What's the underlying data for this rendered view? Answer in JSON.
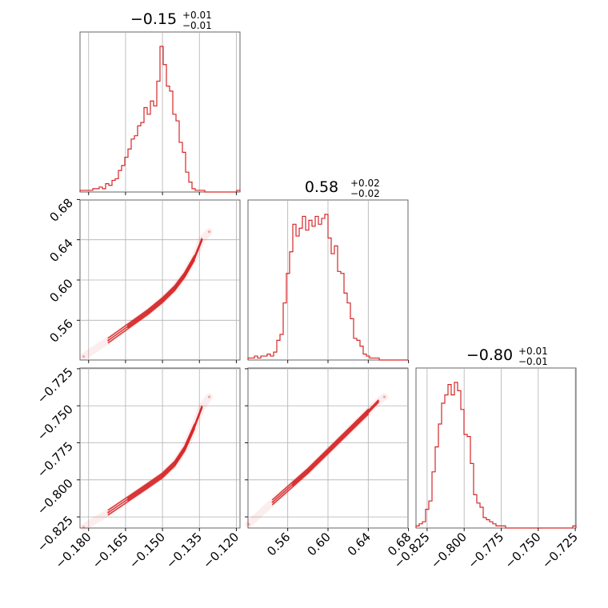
{
  "chart_data": {
    "type": "corner",
    "color": "#d62728",
    "parameters": [
      {
        "title": {
          "median": "−0.15",
          "upper": "+0.01",
          "lower": "−0.01"
        },
        "range": [
          -0.1835,
          -0.1185
        ],
        "ticks": [
          -0.18,
          -0.165,
          -0.15,
          -0.135,
          -0.12
        ],
        "tick_labels": [
          "−0.180",
          "−0.165",
          "−0.150",
          "−0.135",
          "−0.120"
        ]
      },
      {
        "title": {
          "median": "0.58",
          "upper": "+0.02",
          "lower": "−0.02"
        },
        "range": [
          0.5205,
          0.6795
        ],
        "ticks": [
          0.56,
          0.6,
          0.64,
          0.68
        ],
        "tick_labels": [
          "0.56",
          "0.60",
          "0.64",
          "0.68"
        ],
        "y_ticks": [
          0.56,
          0.6,
          0.64,
          0.68
        ],
        "y_tick_labels": [
          "0.56",
          "0.60",
          "0.64",
          "0.68"
        ]
      },
      {
        "title": {
          "median": "−0.80",
          "upper": "+0.01",
          "lower": "−0.01"
        },
        "range": [
          -0.8325,
          -0.7245
        ],
        "ticks": [
          -0.825,
          -0.8,
          -0.775,
          -0.75,
          -0.725
        ],
        "tick_labels": [
          "−0.825",
          "−0.800",
          "−0.775",
          "−0.750",
          "−0.725"
        ]
      }
    ],
    "histograms": [
      {
        "param": 0,
        "bin_edges_range": [
          -0.1835,
          -0.1185
        ],
        "counts": [
          1,
          1,
          1,
          1,
          2,
          2,
          3,
          2,
          5,
          4,
          7,
          8,
          13,
          16,
          21,
          26,
          32,
          34,
          40,
          42,
          51,
          47,
          55,
          52,
          67,
          88,
          77,
          64,
          61,
          47,
          43,
          30,
          24,
          12,
          6,
          2,
          1,
          1,
          1,
          0,
          0,
          0,
          0,
          0,
          0,
          0,
          0,
          0,
          0,
          1
        ]
      },
      {
        "param": 1,
        "bin_edges_range": [
          0.5205,
          0.6795
        ],
        "counts": [
          1,
          1,
          2,
          1,
          2,
          2,
          3,
          2,
          4,
          10,
          13,
          29,
          44,
          55,
          69,
          63,
          67,
          73,
          66,
          71,
          68,
          73,
          69,
          72,
          74,
          62,
          54,
          58,
          45,
          44,
          34,
          29,
          21,
          11,
          10,
          7,
          3,
          2,
          1,
          1,
          1,
          0,
          0,
          0,
          0,
          0,
          0,
          0,
          0,
          0
        ]
      },
      {
        "param": 2,
        "bin_edges_range": [
          -0.8325,
          -0.7245
        ],
        "counts": [
          1,
          2,
          3,
          9,
          13,
          27,
          39,
          50,
          60,
          64,
          69,
          64,
          70,
          66,
          57,
          45,
          44,
          31,
          16,
          12,
          10,
          5,
          4,
          3,
          2,
          1,
          1,
          1,
          0,
          0,
          0,
          0,
          0,
          0,
          0,
          0,
          0,
          0,
          0,
          0,
          0,
          0,
          0,
          0,
          0,
          0,
          0,
          0,
          0,
          1
        ]
      }
    ],
    "pairs": [
      {
        "x_param": 0,
        "y_param": 1,
        "trend": [
          [
            -0.182,
            0.524
          ],
          [
            -0.172,
            0.54
          ],
          [
            -0.164,
            0.554
          ],
          [
            -0.156,
            0.568
          ],
          [
            -0.15,
            0.58
          ],
          [
            -0.145,
            0.592
          ],
          [
            -0.141,
            0.605
          ],
          [
            -0.137,
            0.622
          ],
          [
            -0.134,
            0.64
          ],
          [
            -0.131,
            0.648
          ]
        ]
      },
      {
        "x_param": 0,
        "y_param": 2,
        "trend": [
          [
            -0.182,
            -0.832
          ],
          [
            -0.172,
            -0.822
          ],
          [
            -0.164,
            -0.813
          ],
          [
            -0.156,
            -0.804
          ],
          [
            -0.15,
            -0.797
          ],
          [
            -0.145,
            -0.789
          ],
          [
            -0.141,
            -0.779
          ],
          [
            -0.137,
            -0.764
          ],
          [
            -0.134,
            -0.751
          ],
          [
            -0.131,
            -0.744
          ]
        ]
      },
      {
        "x_param": 1,
        "y_param": 2,
        "trend": [
          [
            0.521,
            -0.83
          ],
          [
            0.545,
            -0.815
          ],
          [
            0.565,
            -0.803
          ],
          [
            0.58,
            -0.794
          ],
          [
            0.595,
            -0.784
          ],
          [
            0.61,
            -0.774
          ],
          [
            0.625,
            -0.764
          ],
          [
            0.64,
            -0.754
          ],
          [
            0.65,
            -0.747
          ],
          [
            0.656,
            -0.744
          ]
        ]
      }
    ],
    "y_axes": {
      "1": {
        "ticks": [
          0.56,
          0.6,
          0.64,
          0.68
        ],
        "tick_labels": [
          "0.56",
          "0.60",
          "0.64",
          "0.68"
        ]
      },
      "2": {
        "ticks": [
          -0.825,
          -0.8,
          -0.775,
          -0.75,
          -0.725
        ],
        "tick_labels": [
          "−0.825",
          "−0.800",
          "−0.775",
          "−0.750",
          "−0.725"
        ]
      }
    },
    "grid": true,
    "xlabel": "",
    "ylabel": ""
  }
}
